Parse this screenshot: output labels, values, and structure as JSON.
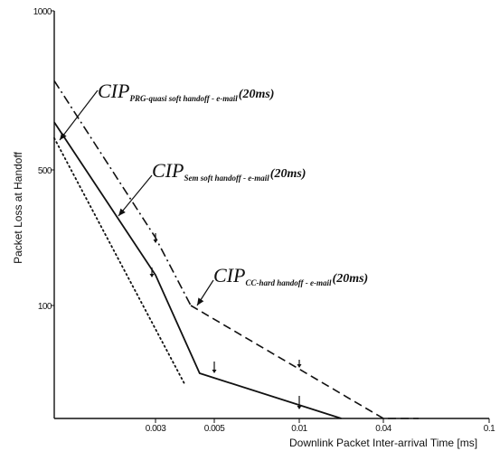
{
  "chart_data": {
    "type": "line",
    "xlabel": "Downlink Packet Inter-arrival Time [ms]",
    "ylabel": "Packet Loss at Handoff",
    "x_ticks": [
      "0.003",
      "0.005",
      "0.01",
      "0.04",
      "0.1"
    ],
    "y_ticks": [
      "1000",
      "500",
      "100"
    ],
    "series": [
      {
        "key": "prg",
        "style": "solid",
        "x": [
          0,
          0.003,
          0.0045,
          0.025
        ],
        "y": [
          650,
          190,
          40,
          0
        ]
      },
      {
        "key": "sem",
        "style": "dashdot",
        "x": [
          0,
          0.003,
          0.0042
        ],
        "y": [
          780,
          300,
          100
        ]
      },
      {
        "key": "cc",
        "style": "dashed",
        "x": [
          0.0042,
          0.04,
          0.06
        ],
        "y": [
          100,
          0,
          0
        ]
      },
      {
        "key": "dots",
        "style": "dotted",
        "x": [
          0,
          0.004
        ],
        "y": [
          600,
          30
        ]
      }
    ],
    "annotations": [
      {
        "main": "CIP",
        "sub": "PRG-quasi soft handoff - e-mail",
        "tail": "(20ms)"
      },
      {
        "main": "CIP",
        "sub": "Sem soft handoff - e-mail",
        "tail": "(20ms)"
      },
      {
        "main": "CIP",
        "sub": "CC-hard handoff - e-mail",
        "tail": "(20ms)"
      }
    ],
    "colors": {
      "line": "#111111",
      "background": "#ffffff"
    }
  }
}
